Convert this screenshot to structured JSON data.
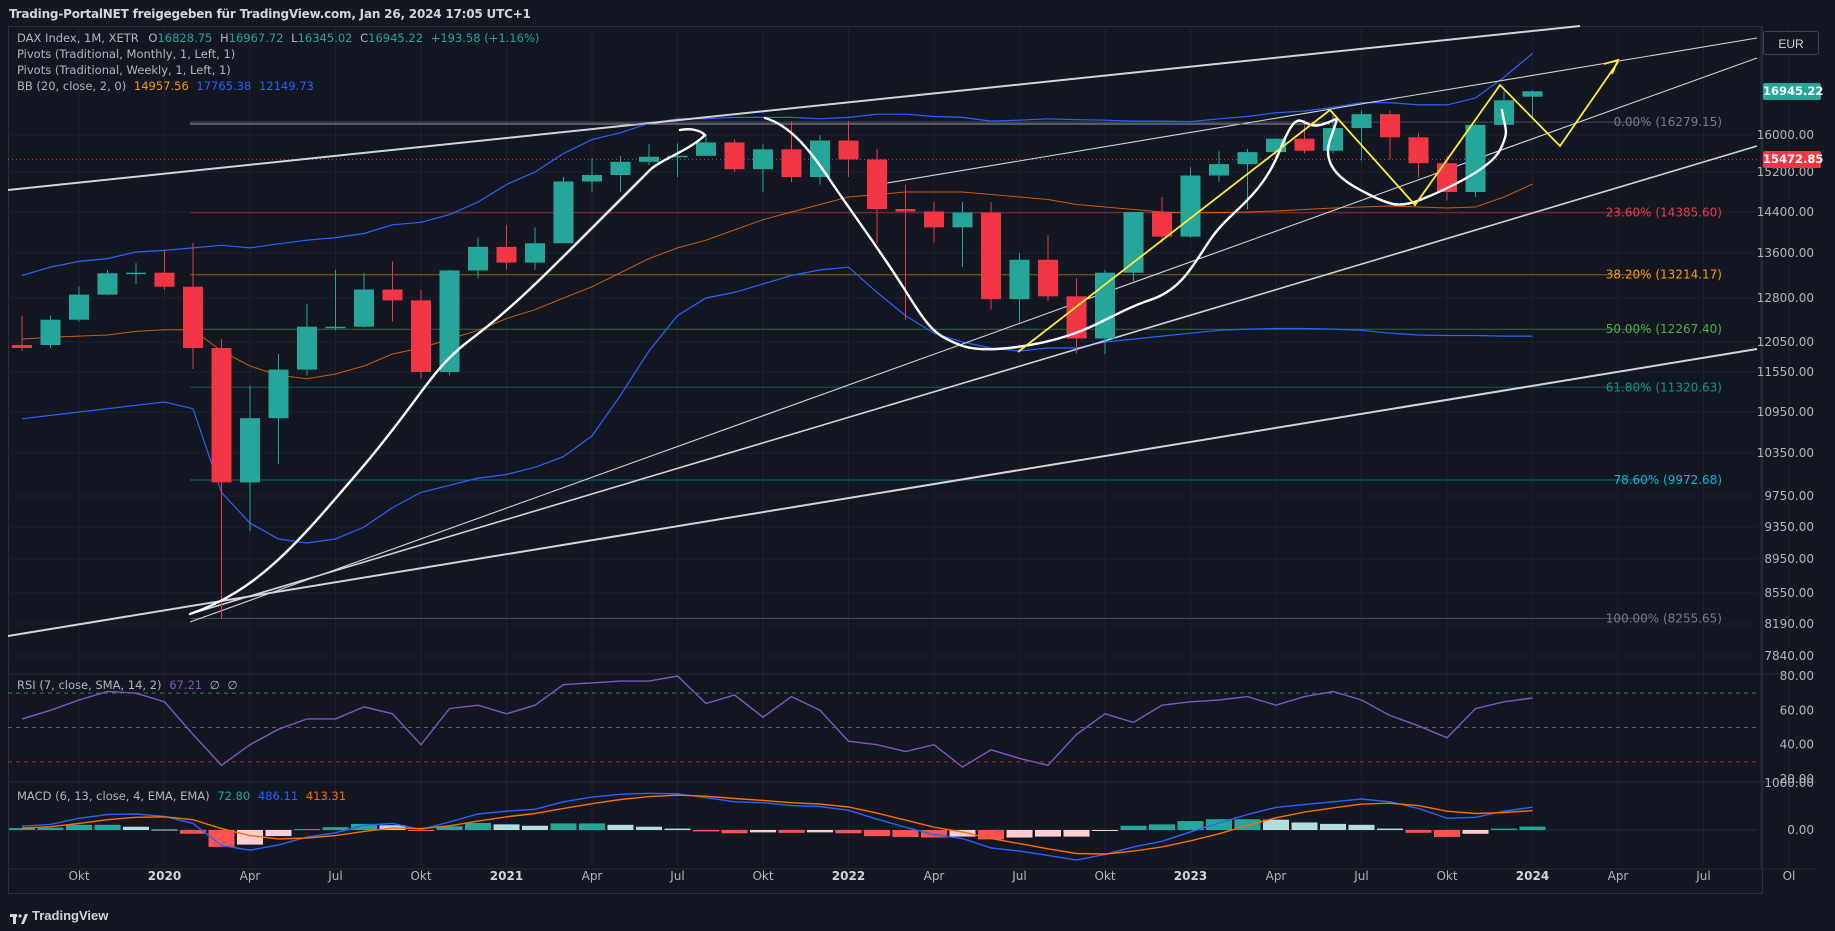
{
  "header": {
    "title": "Trading-PortalNET freigegeben für TradingView.com, Jan 26, 2024 17:05 UTC+1"
  },
  "legend": {
    "symbol": "DAX Index, 1M, XETR",
    "ohlc": [
      {
        "label": "O",
        "value": "16828.75"
      },
      {
        "label": "H",
        "value": "16967.72"
      },
      {
        "label": "L",
        "value": "16345.02"
      },
      {
        "label": "C",
        "value": "16945.22"
      }
    ],
    "change": "+193.58 (+1.16%)",
    "pivots_monthly": "Pivots (Traditional, Monthly, 1, Left, 1)",
    "pivots_weekly": "Pivots (Traditional, Weekly, 1, Left, 1)",
    "bb_label": "BB (20, close, 2, 0)",
    "bb_values": [
      "14957.56",
      "17765.38",
      "12149.73"
    ],
    "rsi_label": "RSI (7, close, SMA, 14, 2)",
    "rsi_values": [
      "67.21",
      "∅",
      "∅"
    ],
    "macd_label": "MACD (6, 13, close, 4, EMA, EMA)",
    "macd_values": [
      "72.80",
      "486.11",
      "413.31"
    ]
  },
  "currency_button": "EUR",
  "price_badges": [
    {
      "text": "16945.22",
      "color": "#26a69a",
      "value": 16945.22
    },
    {
      "text": "15472.85",
      "color": "#f23645",
      "value": 15472.85
    }
  ],
  "brand": "TradingView",
  "colors": {
    "up": "#26a69a",
    "down": "#f23645",
    "bg": "#131722",
    "grid": "#1e222d",
    "bb": "#2962ff",
    "bb_basis": "#ff6d00",
    "rsi": "#7e57c2",
    "annotation_yellow": "#ffeb3b"
  },
  "chart_data": [
    {
      "type": "candlestick",
      "title": "DAX Index, 1M, XETR",
      "price_axis_ticks": [
        "16000.00",
        "15200.00",
        "14400.00",
        "13600.00",
        "12800.00",
        "12050.00",
        "11550.00",
        "10950.00",
        "10350.00",
        "9750.00",
        "9350.00",
        "8950.00",
        "8550.00",
        "8190.00",
        "7840.00"
      ],
      "time_axis_labels": [
        "Okt",
        "2020",
        "Apr",
        "Jul",
        "Okt",
        "2021",
        "Apr",
        "Jul",
        "Okt",
        "2022",
        "Apr",
        "Jul",
        "Okt",
        "2023",
        "Apr",
        "Jul",
        "Okt",
        "2024",
        "Apr",
        "Jul",
        "Ol"
      ],
      "months": [
        "2019-08",
        "2019-09",
        "2019-10",
        "2019-11",
        "2019-12",
        "2020-01",
        "2020-02",
        "2020-03",
        "2020-04",
        "2020-05",
        "2020-06",
        "2020-07",
        "2020-08",
        "2020-09",
        "2020-10",
        "2020-11",
        "2020-12",
        "2021-01",
        "2021-02",
        "2021-03",
        "2021-04",
        "2021-05",
        "2021-06",
        "2021-07",
        "2021-08",
        "2021-09",
        "2021-10",
        "2021-11",
        "2021-12",
        "2022-01",
        "2022-02",
        "2022-03",
        "2022-04",
        "2022-05",
        "2022-06",
        "2022-07",
        "2022-08",
        "2022-09",
        "2022-10",
        "2022-11",
        "2022-12",
        "2023-01",
        "2023-02",
        "2023-03",
        "2023-04",
        "2023-05",
        "2023-06",
        "2023-07",
        "2023-08",
        "2023-09",
        "2023-10",
        "2023-11",
        "2023-12",
        "2024-01"
      ],
      "ohlc": [
        [
          12000,
          12500,
          11900,
          11950
        ],
        [
          12000,
          12500,
          11950,
          12430
        ],
        [
          12430,
          13000,
          12400,
          12860
        ],
        [
          12860,
          13300,
          12850,
          13240
        ],
        [
          13240,
          13420,
          13050,
          13250
        ],
        [
          13250,
          13650,
          12950,
          13000
        ],
        [
          13000,
          13800,
          11600,
          11950
        ],
        [
          11950,
          12100,
          8255,
          9940
        ],
        [
          9940,
          11350,
          9300,
          10860
        ],
        [
          10860,
          11850,
          10200,
          11590
        ],
        [
          11590,
          12700,
          11500,
          12310
        ],
        [
          12310,
          13300,
          12250,
          12310
        ],
        [
          12310,
          13250,
          12300,
          12950
        ],
        [
          12950,
          13450,
          12400,
          12760
        ],
        [
          12760,
          12950,
          11450,
          11550
        ],
        [
          11550,
          13300,
          11500,
          13290
        ],
        [
          13290,
          13900,
          13150,
          13720
        ],
        [
          13720,
          14150,
          13300,
          13430
        ],
        [
          13430,
          14100,
          13300,
          13790
        ],
        [
          13790,
          15100,
          13800,
          15010
        ],
        [
          15010,
          15500,
          14800,
          15140
        ],
        [
          15140,
          15550,
          14800,
          15420
        ],
        [
          15420,
          15800,
          15350,
          15530
        ],
        [
          15530,
          15820,
          15100,
          15550
        ],
        [
          15550,
          16000,
          15600,
          15840
        ],
        [
          15840,
          15900,
          15200,
          15260
        ],
        [
          15260,
          15800,
          14800,
          15690
        ],
        [
          15690,
          16300,
          15000,
          15100
        ],
        [
          15100,
          16000,
          14950,
          15880
        ],
        [
          15880,
          16300,
          15100,
          15470
        ],
        [
          15470,
          15700,
          13800,
          14460
        ],
        [
          14460,
          14950,
          12430,
          14410
        ],
        [
          14410,
          14600,
          13800,
          14100
        ],
        [
          14100,
          14600,
          13350,
          14390
        ],
        [
          14390,
          14600,
          12600,
          12780
        ],
        [
          12780,
          13600,
          12400,
          13480
        ],
        [
          13480,
          13950,
          12750,
          12830
        ],
        [
          12830,
          13150,
          11860,
          12110
        ],
        [
          12110,
          13300,
          11850,
          13250
        ],
        [
          13250,
          14400,
          13100,
          14400
        ],
        [
          14400,
          14700,
          13800,
          13920
        ],
        [
          13920,
          15300,
          13900,
          15130
        ],
        [
          15130,
          15650,
          15000,
          15370
        ],
        [
          15370,
          15700,
          14450,
          15630
        ],
        [
          15630,
          15920,
          15450,
          15920
        ],
        [
          15920,
          16330,
          15600,
          15660
        ],
        [
          15660,
          16430,
          15600,
          16150
        ],
        [
          16150,
          16530,
          15450,
          16450
        ],
        [
          16450,
          16530,
          15470,
          15950
        ],
        [
          15950,
          16050,
          15100,
          15390
        ],
        [
          15390,
          15550,
          14630,
          14800
        ],
        [
          14800,
          16250,
          14700,
          16220
        ],
        [
          16220,
          16950,
          16180,
          16750
        ],
        [
          16828.75,
          16967.72,
          16345.02,
          16945.22
        ]
      ],
      "bollinger": {
        "label": "BB (20, close, 2, 0)",
        "basis_last": 14957.56,
        "upper_last": 17765.38,
        "lower_last": 12149.73
      },
      "fibonacci_levels": [
        {
          "label": "0.00% (16279.15)",
          "value": 16279.15,
          "color": "#787b86"
        },
        {
          "label": "23.60% (14385.60)",
          "value": 14385.6,
          "color": "#f23645"
        },
        {
          "label": "38.20% (13214.17)",
          "value": 13214.17,
          "color": "#ff9800"
        },
        {
          "label": "50.00% (12267.40)",
          "value": 12267.4,
          "color": "#4caf50"
        },
        {
          "label": "61.80% (11320.63)",
          "value": 11320.63,
          "color": "#089981"
        },
        {
          "label": "78.60% (9972.68)",
          "value": 9972.68,
          "color": "#00bcd4"
        },
        {
          "label": "100.00% (8255.65)",
          "value": 8255.65,
          "color": "#787b86"
        }
      ],
      "last_close": 16945.22,
      "marked_price": 15472.85
    },
    {
      "type": "line",
      "title": "RSI (7, close, SMA, 14, 2)",
      "y_ticks": [
        "80.00",
        "60.00",
        "40.00",
        "20.00"
      ],
      "levels": [
        70,
        50,
        30
      ],
      "values": [
        55,
        60,
        66,
        71,
        70,
        65,
        46,
        28,
        40,
        49,
        55,
        55,
        62,
        58,
        40,
        61,
        63,
        58,
        63,
        75,
        76,
        77,
        77,
        80,
        64,
        69,
        56,
        68,
        60,
        42,
        40,
        36,
        40,
        27,
        37,
        32,
        28,
        46,
        58,
        53,
        63,
        65,
        66,
        68,
        63,
        68,
        71,
        66,
        57,
        51,
        44,
        61,
        65,
        67.21
      ]
    },
    {
      "type": "line",
      "title": "MACD (6, 13, close, 4, EMA, EMA)",
      "y_ticks": [
        "1000.00",
        "0.00"
      ],
      "series": [
        {
          "name": "macd",
          "color": "#2962ff",
          "values": [
            80,
            120,
            250,
            330,
            340,
            290,
            140,
            -330,
            -430,
            -320,
            -150,
            -60,
            100,
            140,
            10,
            170,
            340,
            400,
            440,
            600,
            700,
            760,
            780,
            770,
            690,
            600,
            580,
            520,
            500,
            420,
            230,
            60,
            -100,
            -180,
            -380,
            -450,
            -540,
            -640,
            -520,
            -360,
            -240,
            -40,
            150,
            330,
            480,
            540,
            600,
            660,
            600,
            460,
            250,
            270,
            400,
            486.11
          ]
        },
        {
          "name": "signal",
          "color": "#ff6d00",
          "values": [
            40,
            70,
            140,
            220,
            270,
            280,
            220,
            30,
            -120,
            -190,
            -170,
            -120,
            -30,
            40,
            30,
            90,
            190,
            280,
            350,
            460,
            560,
            650,
            710,
            740,
            720,
            670,
            630,
            580,
            550,
            490,
            360,
            210,
            60,
            -40,
            -180,
            -290,
            -400,
            -500,
            -510,
            -450,
            -360,
            -230,
            -80,
            100,
            260,
            380,
            470,
            550,
            570,
            520,
            400,
            350,
            370,
            413.31
          ]
        },
        {
          "name": "histogram",
          "color": "#26a69a",
          "values": [
            40,
            50,
            110,
            110,
            70,
            10,
            -80,
            -360,
            -310,
            -130,
            20,
            60,
            130,
            100,
            -20,
            80,
            150,
            120,
            90,
            140,
            140,
            110,
            70,
            30,
            -30,
            -70,
            -50,
            -60,
            -50,
            -70,
            -130,
            -150,
            -160,
            -140,
            -200,
            -160,
            -140,
            -140,
            -10,
            90,
            120,
            190,
            230,
            230,
            220,
            160,
            130,
            110,
            30,
            -60,
            -150,
            -80,
            30,
            72.8
          ]
        }
      ]
    }
  ]
}
